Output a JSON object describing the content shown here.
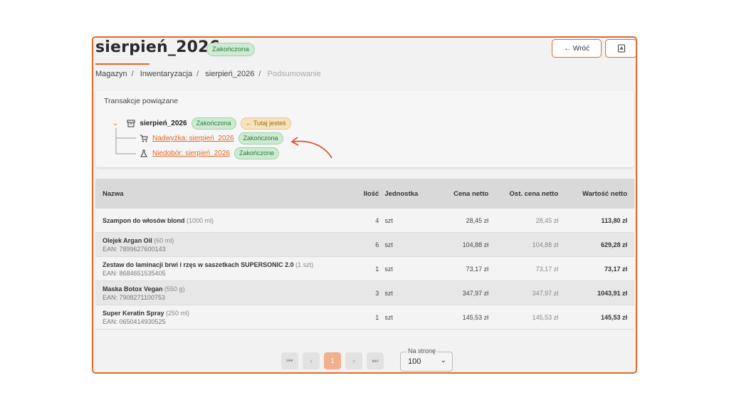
{
  "header": {
    "title": "sierpień_2026",
    "status": "Zakończona",
    "back_label": "← Wróć",
    "pdf_icon": "pdf-icon"
  },
  "breadcrumb": [
    "Magazyn",
    "Inwentaryzacja",
    "sierpień_2026",
    "Podsumowanie"
  ],
  "transactions": {
    "title": "Transakcje powiązane",
    "root": {
      "name": "sierpień_2026",
      "status": "Zakończona",
      "here": "Tutaj jesteś"
    },
    "children": [
      {
        "name": "Nadwyżka: sierpień_2026",
        "status": "Zakończona"
      },
      {
        "name": "Niedobór: sierpień_2026",
        "status": "Zakończone"
      }
    ]
  },
  "table": {
    "headers": [
      "Nazwa",
      "Ilość",
      "Jednostka",
      "Cena netto",
      "Ost. cena netto",
      "Wartość netto"
    ],
    "rows": [
      {
        "name": "Szampon do włosów blond",
        "size": "(1000 ml)",
        "ean": "",
        "qty": "4",
        "unit": "szt",
        "price": "28,45 zł",
        "last_price": "28,45 zł",
        "value": "113,80 zł"
      },
      {
        "name": "Olejek Argan Oil",
        "size": "(60 ml)",
        "ean": "EAN: 7899627600143",
        "qty": "6",
        "unit": "szt",
        "price": "104,88 zł",
        "last_price": "104,88 zł",
        "value": "629,28 zł"
      },
      {
        "name": "Zestaw do laminacji brwi i rzęs w saszetkach SUPERSONIC 2.0",
        "size": "(1 szt)",
        "ean": "EAN: 8684651535405",
        "qty": "1",
        "unit": "szt",
        "price": "73,17 zł",
        "last_price": "73,17 zł",
        "value": "73,17 zł"
      },
      {
        "name": "Maska Botox Vegan",
        "size": "(550 g)",
        "ean": "EAN: 7908271100753",
        "qty": "3",
        "unit": "szt",
        "price": "347,97 zł",
        "last_price": "347,97 zł",
        "value": "1043,91 zł"
      },
      {
        "name": "Super Keratin Spray",
        "size": "(250 ml)",
        "ean": "EAN: 0650414930525",
        "qty": "1",
        "unit": "szt",
        "price": "145,53 zł",
        "last_price": "145,53 zł",
        "value": "145,53 zł"
      }
    ]
  },
  "pagination": {
    "first": "⏮",
    "prev": "‹",
    "current": "1",
    "next": "›",
    "last": "⏭",
    "per_page_label": "Na stronę",
    "per_page_value": "100"
  },
  "colors": {
    "accent": "#e2692d",
    "success_bg": "#cdebd2",
    "here_bg": "#f6e3bc"
  }
}
